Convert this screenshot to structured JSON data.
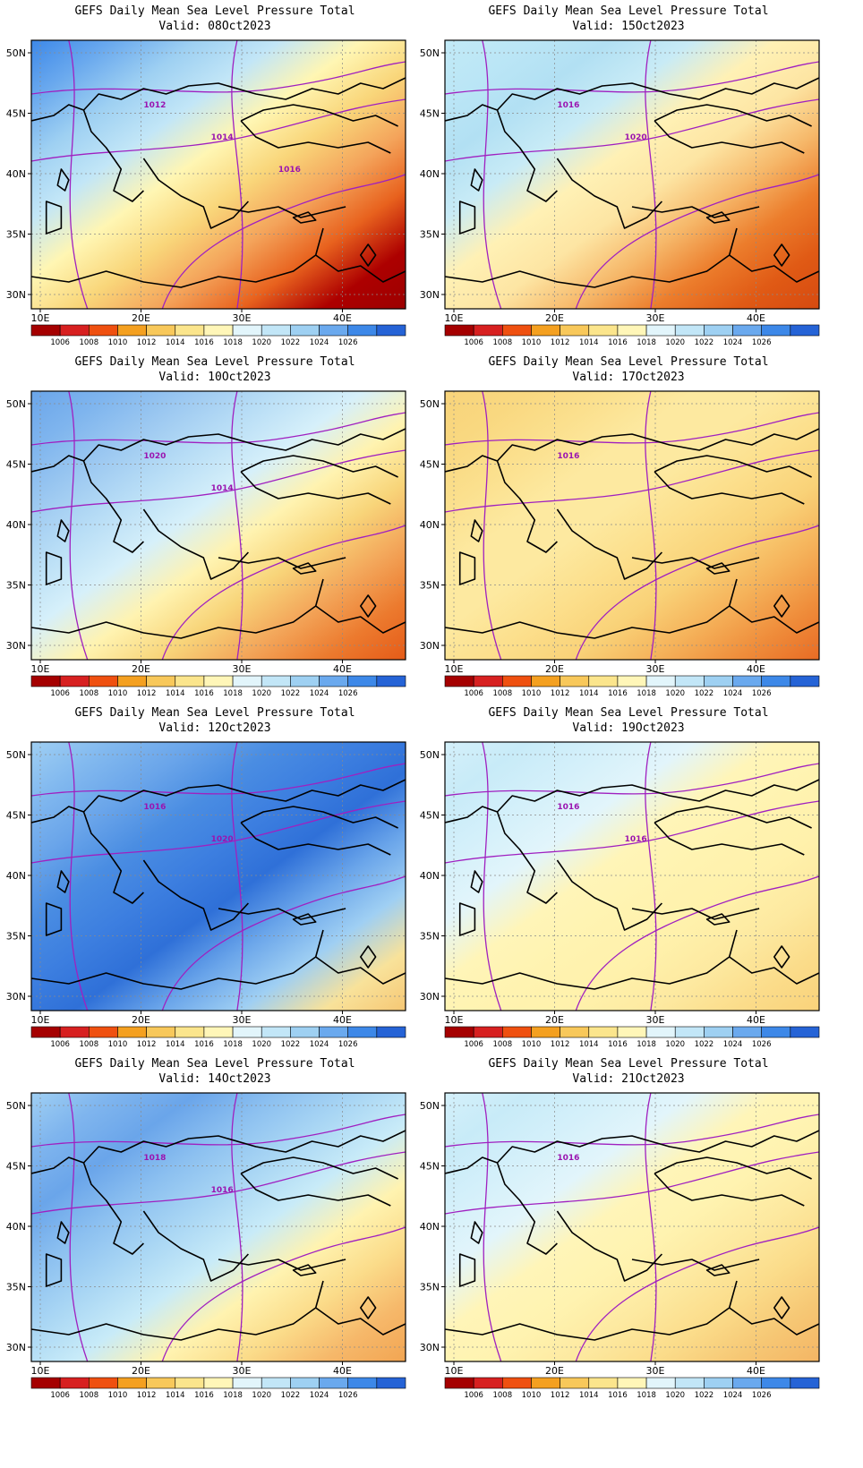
{
  "panels": [
    {
      "title": "GEFS Daily Mean Sea Level Pressure Total",
      "valid": "Valid: 08Oct2023",
      "gradient": [
        "#3d88e8",
        "#6aa9ee",
        "#9ed0f2",
        "#c2e6f7",
        "#fff6b3",
        "#f9d67a",
        "#f4a45b",
        "#e8621e",
        "#ad0000",
        "#9c0000"
      ],
      "contours": [
        "1012",
        "1014",
        "1016"
      ]
    },
    {
      "title": "GEFS Daily Mean Sea Level Pressure Total",
      "valid": "Valid: 15Oct2023",
      "gradient": [
        "#c2eaf7",
        "#bbe6f6",
        "#b2e0f3",
        "#c8ebf6",
        "#fff1b5",
        "#fde5a3",
        "#f6b86a",
        "#ec7d2c",
        "#e05a15",
        "#d64a10"
      ],
      "contours": [
        "1016",
        "1020"
      ]
    },
    {
      "title": "GEFS Daily Mean Sea Level Pressure Total",
      "valid": "Valid: 10Oct2023",
      "gradient": [
        "#6aa5ea",
        "#7fb5ee",
        "#9dc9f1",
        "#b9def6",
        "#d6f0fa",
        "#fff3b0",
        "#f8d57a",
        "#f3a65a",
        "#ec7a2e",
        "#e55b18"
      ],
      "contours": [
        "1020",
        "1014"
      ]
    },
    {
      "title": "GEFS Daily Mean Sea Level Pressure Total",
      "valid": "Valid: 17Oct2023",
      "gradient": [
        "#f8d37a",
        "#f9d880",
        "#fbe08e",
        "#fde9a0",
        "#fde9a0",
        "#fcdf8c",
        "#f9d278",
        "#f5b25a",
        "#ef8d3b",
        "#e86b24"
      ],
      "contours": [
        "1016"
      ]
    },
    {
      "title": "GEFS Daily Mean Sea Level Pressure Total",
      "valid": "Valid: 12Oct2023",
      "gradient": [
        "#9fcff3",
        "#82b9ef",
        "#6aa5ea",
        "#4a8de2",
        "#3d7fe0",
        "#2f70d8",
        "#6aa5ea",
        "#9fcff3",
        "#f8e29a",
        "#f6c774"
      ],
      "contours": [
        "1016",
        "1020"
      ]
    },
    {
      "title": "GEFS Daily Mean Sea Level Pressure Total",
      "valid": "Valid: 19Oct2023",
      "gradient": [
        "#d4f0fa",
        "#c8ebf8",
        "#d4f0fa",
        "#e2f5fb",
        "#fff5b8",
        "#fff3b0",
        "#fff1ab",
        "#fde9a0",
        "#fbdc8a",
        "#f9d27a"
      ],
      "contours": [
        "1016",
        "1016"
      ]
    },
    {
      "title": "GEFS Daily Mean Sea Level Pressure Total",
      "valid": "Valid: 14Oct2023",
      "gradient": [
        "#9fcff3",
        "#7fb5ee",
        "#6aa5ea",
        "#8cc0f0",
        "#a9d6f4",
        "#c8ebf8",
        "#fff3b0",
        "#fbdc8a",
        "#f6b86a",
        "#f2a552"
      ],
      "contours": [
        "1018",
        "1016"
      ]
    },
    {
      "title": "GEFS Daily Mean Sea Level Pressure Total",
      "valid": "Valid: 21Oct2023",
      "gradient": [
        "#d4f0fa",
        "#c8ebf8",
        "#d4f0fa",
        "#e2f5fb",
        "#fff5b8",
        "#fff3b0",
        "#fde9a0",
        "#fbdc8a",
        "#f6c774",
        "#f4b564"
      ],
      "contours": [
        "1016"
      ]
    }
  ],
  "axes": {
    "y_ticks": [
      "50N",
      "45N",
      "40N",
      "35N",
      "30N"
    ],
    "x_ticks": [
      "10E",
      "20E",
      "30E",
      "40E"
    ]
  },
  "colorbar": {
    "labels": [
      "1006",
      "1008",
      "1010",
      "1012",
      "1014",
      "1016",
      "1018",
      "1020",
      "1022",
      "1024",
      "1026"
    ],
    "colors": [
      "#a50000",
      "#d72020",
      "#ef5010",
      "#f4a020",
      "#f8c85a",
      "#fbe58c",
      "#fff6b8",
      "#e2f5fb",
      "#c2e6f7",
      "#9ed0f2",
      "#6aa9ee",
      "#3d88e8",
      "#2563d6"
    ]
  }
}
